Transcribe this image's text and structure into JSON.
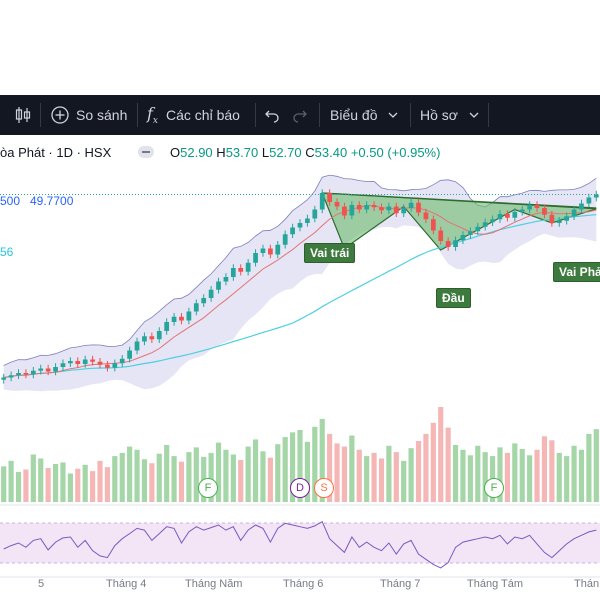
{
  "toolbar": {
    "compare_label": "So sánh",
    "indicators_label": "Các chỉ báo",
    "chart_label": "Biểu đồ",
    "profile_label": "Hồ sơ"
  },
  "header": {
    "symbol": "òa Phát · 1D · HSX",
    "open_key": "O",
    "open": "52.90",
    "high_key": "H",
    "high": "53.70",
    "low_key": "L",
    "low": "52.70",
    "close_key": "C",
    "close": "53.40",
    "change": "+0.50 (+0.95%)"
  },
  "price_labels": {
    "left_a": "500",
    "left_b": "49.7700",
    "left_c": "56"
  },
  "pattern_labels": {
    "left_shoulder": "Vai trái",
    "head": "Đầu",
    "right_shoulder": "Vai Phải"
  },
  "events": [
    {
      "letter": "F",
      "color": "#4caf50"
    },
    {
      "letter": "D",
      "color": "#7b1fa2"
    },
    {
      "letter": "S",
      "color": "#ff7043"
    },
    {
      "letter": "F",
      "color": "#4caf50"
    }
  ],
  "x_axis": [
    "5",
    "Tháng 4",
    "Tháng Năm",
    "Tháng 6",
    "Tháng 7",
    "Tháng Tám",
    "Thán"
  ],
  "colors": {
    "up": "#26a69a",
    "down": "#ef5350",
    "bollinger_fill": "#e1e0f3",
    "ma_long": "#4dd0e1",
    "ma_short": "#e57373",
    "pattern_fill": "#6cba6c",
    "rsi_fill": "#f3e5f5",
    "rsi_line": "#7e57c2"
  },
  "chart_data": {
    "type": "candlestick",
    "closes": [
      29,
      29.3,
      29.6,
      29.4,
      29.9,
      30.2,
      29.8,
      30.4,
      30.9,
      31.2,
      30.8,
      31.4,
      31.1,
      30.7,
      30.3,
      30.9,
      31.5,
      32.6,
      33.8,
      34.5,
      34.1,
      35.2,
      36.4,
      37.1,
      36.6,
      37.8,
      38.9,
      39.6,
      40.7,
      41.8,
      42.4,
      43.6,
      43.1,
      44.3,
      45.6,
      46.2,
      45.4,
      46.7,
      48.1,
      49.0,
      49.6,
      50.2,
      51.4,
      53.6,
      52.4,
      51.8,
      50.6,
      52.0,
      51.4,
      52.0,
      51.7,
      51.3,
      51.8,
      50.9,
      51.6,
      52.3,
      51.0,
      50.1,
      48.6,
      47.2,
      46.4,
      47.3,
      48.0,
      48.5,
      49.1,
      49.7,
      50.1,
      50.8,
      50.3,
      51.1,
      51.4,
      52.0,
      51.6,
      50.7,
      49.6,
      49.9,
      50.5,
      51.4,
      52.2,
      53.0,
      53.4
    ],
    "volume": [
      0.45,
      0.52,
      0.38,
      0.41,
      0.6,
      0.55,
      0.43,
      0.48,
      0.5,
      0.36,
      0.42,
      0.47,
      0.39,
      0.52,
      0.44,
      0.58,
      0.62,
      0.7,
      0.66,
      0.54,
      0.49,
      0.61,
      0.72,
      0.58,
      0.51,
      0.63,
      0.69,
      0.57,
      0.62,
      0.75,
      0.66,
      0.6,
      0.53,
      0.7,
      0.79,
      0.64,
      0.56,
      0.73,
      0.82,
      0.88,
      0.91,
      0.76,
      0.95,
      1.05,
      0.86,
      0.74,
      0.7,
      0.84,
      0.66,
      0.58,
      0.62,
      0.55,
      0.71,
      0.63,
      0.52,
      0.68,
      0.77,
      0.86,
      1.0,
      1.2,
      0.94,
      0.72,
      0.66,
      0.59,
      0.71,
      0.63,
      0.58,
      0.69,
      0.62,
      0.74,
      0.67,
      0.59,
      0.66,
      0.83,
      0.78,
      0.62,
      0.58,
      0.71,
      0.66,
      0.86,
      0.92
    ],
    "rsi": [
      48,
      52,
      55,
      50,
      58,
      60,
      47,
      56,
      61,
      62,
      50,
      58,
      46,
      40,
      38,
      52,
      60,
      66,
      72,
      70,
      58,
      66,
      74,
      72,
      55,
      68,
      74,
      70,
      73,
      76,
      70,
      74,
      58,
      70,
      76,
      72,
      56,
      72,
      78,
      76,
      74,
      72,
      75,
      80,
      60,
      52,
      44,
      62,
      50,
      56,
      50,
      46,
      55,
      42,
      54,
      58,
      42,
      36,
      30,
      26,
      32,
      50,
      56,
      58,
      60,
      62,
      60,
      64,
      54,
      62,
      60,
      64,
      54,
      44,
      38,
      46,
      54,
      60,
      64,
      68,
      70
    ]
  }
}
